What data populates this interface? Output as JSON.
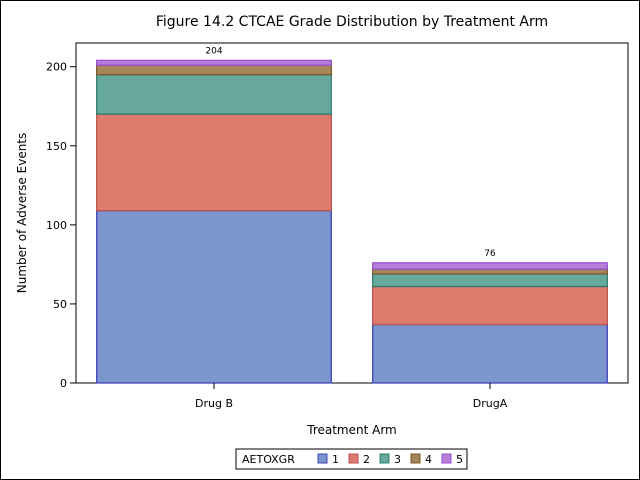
{
  "chart_data": {
    "type": "bar",
    "stacked": true,
    "title": "Figure 14.2 CTCAE Grade Distribution by Treatment Arm",
    "xlabel": "Treatment Arm",
    "ylabel": "Number of Adverse Events",
    "categories": [
      "Drug B",
      "DrugA"
    ],
    "totals": [
      "204",
      "76"
    ],
    "ylim": [
      0,
      215
    ],
    "yticks": [
      0,
      50,
      100,
      150,
      200
    ],
    "ytick_labels": [
      "0",
      "50",
      "100",
      "150",
      "200"
    ],
    "legend": {
      "title": "AETOXGR",
      "placement": "bottom"
    },
    "series": [
      {
        "name": "1",
        "values": [
          109,
          37
        ],
        "color": "#7b96cc",
        "edge": "#4444bb"
      },
      {
        "name": "2",
        "values": [
          61,
          24
        ],
        "color": "#dd7c6e",
        "edge": "#c0504d"
      },
      {
        "name": "3",
        "values": [
          25,
          8
        ],
        "color": "#66a89c",
        "edge": "#2f7f6f"
      },
      {
        "name": "4",
        "values": [
          6,
          3
        ],
        "color": "#a5875a",
        "edge": "#7a5a28"
      },
      {
        "name": "5",
        "values": [
          3,
          4
        ],
        "color": "#b77ed8",
        "edge": "#9a4fd0"
      }
    ],
    "grid": false
  }
}
